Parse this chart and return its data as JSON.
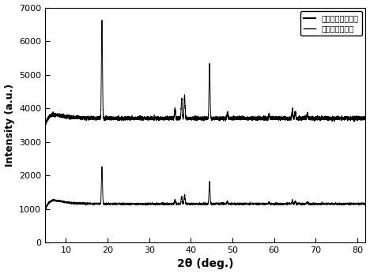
{
  "title": "",
  "xlabel": "2θ (deg.)",
  "ylabel": "Intensity (a.u.)",
  "xlim": [
    5,
    82
  ],
  "ylim": [
    0,
    7000
  ],
  "xticks": [
    10,
    20,
    30,
    40,
    50,
    60,
    70,
    80
  ],
  "yticks": [
    0,
    1000,
    2000,
    3000,
    4000,
    5000,
    6000,
    7000
  ],
  "legend_labels": [
    "多段式烧结掐杂钐",
    "一次烧结掐杂钐"
  ],
  "line_color": "black",
  "background_color": "white",
  "figsize": [
    4.68,
    3.47
  ],
  "dpi": 100,
  "base1": 3700,
  "base2": 1150,
  "noise_amp1": 25,
  "noise_amp2": 12,
  "peak_positions": [
    18.65,
    36.2,
    37.8,
    38.5,
    44.5,
    48.8,
    58.8,
    64.4,
    65.1,
    68.0
  ],
  "peak_heights1": [
    2900,
    280,
    580,
    680,
    1620,
    180,
    100,
    280,
    190,
    120
  ],
  "peak_heights2": [
    1100,
    110,
    220,
    270,
    650,
    70,
    40,
    110,
    75,
    50
  ],
  "peak_sigma": 0.12
}
